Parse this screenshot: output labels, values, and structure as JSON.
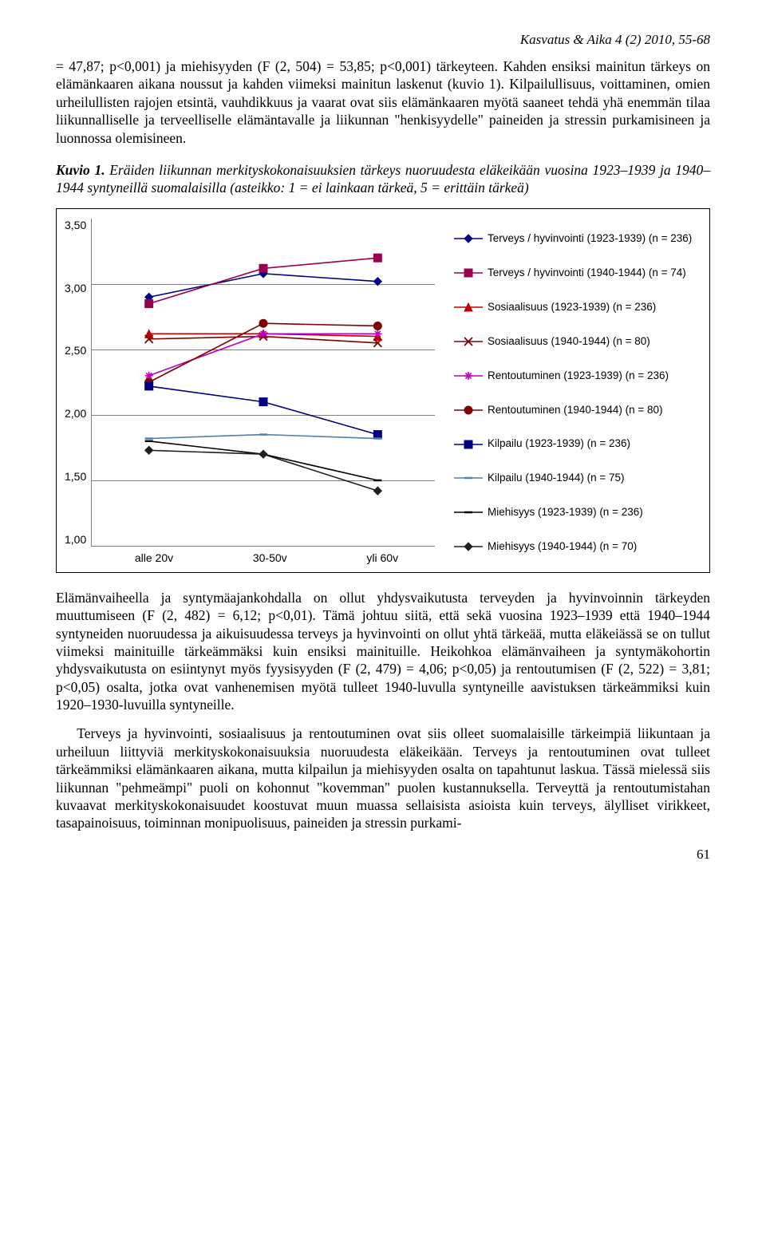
{
  "header": {
    "journal_ref": "Kasvatus & Aika 4 (2) 2010, 55-68"
  },
  "para1": "= 47,87; p<0,001) ja miehisyyden (F (2, 504) = 53,85; p<0,001) tärkeyteen. Kahden ensiksi mainitun tärkeys on elämänkaaren aikana noussut ja kahden viimeksi mainitun laskenut (kuvio 1). Kilpailullisuus, voittaminen, omien urheilullisten rajojen etsintä, vauhdikkuus ja vaarat ovat siis elämänkaaren myötä saaneet tehdä yhä enemmän tilaa liikunnalliselle ja terveelliselle elämäntavalle ja liikunnan \"henkisyydelle\" paineiden ja stressin purkamisineen ja luonnossa olemisineen.",
  "caption": {
    "lead": "Kuvio 1.",
    "rest": " Eräiden liikunnan merkityskokonaisuuksien tärkeys nuoruudesta eläkeikään vuosina 1923–1939 ja 1940–1944 syntyneillä suomalaisilla (asteikko: 1 = ei lainkaan tärkeä, 5 = erittäin tärkeä)"
  },
  "chart": {
    "type": "line",
    "categories": [
      "alle 20v",
      "30-50v",
      "yli 60v"
    ],
    "ylim": [
      1.0,
      3.5
    ],
    "ytick_step": 0.5,
    "yticks": [
      "3,50",
      "3,00",
      "2,50",
      "2,00",
      "1,50",
      "1,00"
    ],
    "grid_color": "#808080",
    "background_color": "#ffffff",
    "series": [
      {
        "label": "Terveys / hyvinvointi (1923-1939) (n = 236)",
        "color": "#000080",
        "marker": "diamond",
        "values": [
          2.9,
          3.08,
          3.02
        ]
      },
      {
        "label": "Terveys / hyvinvointi (1940-1944) (n = 74)",
        "color": "#99004d",
        "marker": "square",
        "values": [
          2.85,
          3.12,
          3.2
        ]
      },
      {
        "label": "Sosiaalisuus (1923-1939) (n = 236)",
        "color": "#c00000",
        "marker": "triangle",
        "values": [
          2.62,
          2.62,
          2.6
        ]
      },
      {
        "label": "Sosiaalisuus (1940-1944) (n = 80)",
        "color": "#800000",
        "marker": "cross",
        "values": [
          2.58,
          2.6,
          2.55
        ]
      },
      {
        "label": "Rentoutuminen (1923-1939) (n = 236)",
        "color": "#c000c0",
        "marker": "asterisk",
        "values": [
          2.3,
          2.62,
          2.62
        ]
      },
      {
        "label": "Rentoutuminen (1940-1944) (n = 80)",
        "color": "#800000",
        "marker": "circle",
        "values": [
          2.25,
          2.7,
          2.68
        ]
      },
      {
        "label": "Kilpailu (1923-1939) (n = 236)",
        "color": "#000080",
        "marker": "square-filled",
        "values": [
          2.22,
          2.1,
          1.85
        ]
      },
      {
        "label": "Kilpailu (1940-1944) (n = 75)",
        "color": "#5080b0",
        "marker": "dash",
        "values": [
          1.82,
          1.85,
          1.82
        ]
      },
      {
        "label": "Miehisyys (1923-1939) (n = 236)",
        "color": "#000000",
        "marker": "dash",
        "values": [
          1.8,
          1.7,
          1.5
        ]
      },
      {
        "label": "Miehisyys (1940-1944) (n = 70)",
        "color": "#202020",
        "marker": "diamond",
        "values": [
          1.73,
          1.7,
          1.42
        ]
      }
    ]
  },
  "para2": "Elämänvaiheella ja syntymäajankohdalla on ollut yhdysvaikutusta terveyden ja hyvinvoinnin tärkeyden muuttumiseen (F (2, 482) = 6,12; p<0,01). Tämä johtuu siitä, että sekä vuosina 1923–1939 että 1940–1944 syntyneiden nuoruudessa ja aikuisuudessa terveys ja hyvinvointi on ollut yhtä tärkeää, mutta eläkeiässä se on tullut viimeksi mainituille tärkeämmäksi kuin ensiksi mainituille. Heikohkoa elämänvaiheen ja syntymäkohortin yhdysvaikutusta on esiintynyt myös fyysisyyden (F (2, 479) = 4,06; p<0,05) ja rentoutumisen (F (2, 522) = 3,81; p<0,05) osalta, jotka ovat vanhenemisen myötä tulleet 1940-luvulla syntyneille aavistuksen tärkeämmiksi kuin 1920–1930-luvuilla syntyneille.",
  "para3": "Terveys ja hyvinvointi, sosiaalisuus ja rentoutuminen ovat siis olleet suomalaisille tärkeimpiä liikuntaan ja urheiluun liittyviä merkityskokonaisuuksia nuoruudesta eläkeikään. Terveys ja rentoutuminen ovat tulleet tärkeämmiksi elämänkaaren aikana, mutta kilpailun ja miehisyyden osalta on tapahtunut laskua. Tässä mielessä siis liikunnan \"pehmeämpi\" puoli on kohonnut \"kovemman\" puolen kustannuksella. Terveyttä ja rentoutumistahan kuvaavat merkityskokonaisuudet koostuvat muun muassa sellaisista asioista kuin terveys, älylliset virikkeet, tasapainoisuus, toiminnan monipuolisuus, paineiden ja stressin purkami-",
  "page_num": "61"
}
